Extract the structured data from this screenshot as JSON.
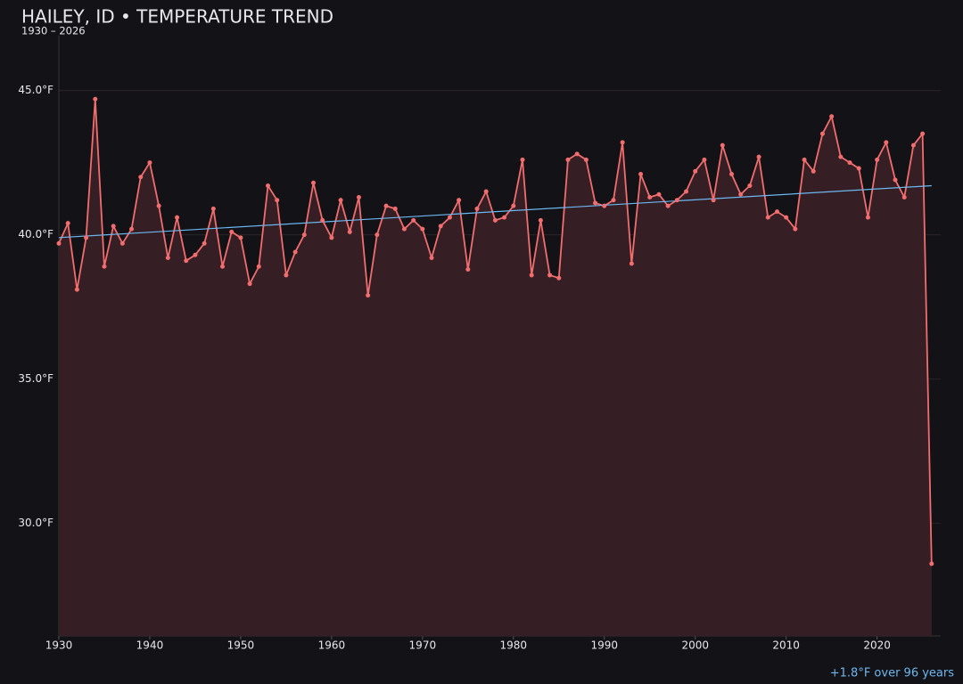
{
  "chart_data": {
    "type": "line",
    "title": "HAILEY, ID • TEMPERATURE TREND",
    "subtitle": "1930 – 2026",
    "annotation": "+1.8°F over 96 years",
    "x": [
      1930,
      1931,
      1932,
      1933,
      1934,
      1935,
      1936,
      1937,
      1938,
      1939,
      1940,
      1941,
      1942,
      1943,
      1944,
      1945,
      1946,
      1947,
      1948,
      1949,
      1950,
      1951,
      1952,
      1953,
      1954,
      1955,
      1956,
      1957,
      1958,
      1959,
      1960,
      1961,
      1962,
      1963,
      1964,
      1965,
      1966,
      1967,
      1968,
      1969,
      1970,
      1971,
      1972,
      1973,
      1974,
      1975,
      1976,
      1977,
      1978,
      1979,
      1980,
      1981,
      1982,
      1983,
      1984,
      1985,
      1986,
      1987,
      1988,
      1989,
      1990,
      1991,
      1992,
      1993,
      1994,
      1995,
      1996,
      1997,
      1998,
      1999,
      2000,
      2001,
      2002,
      2003,
      2004,
      2005,
      2006,
      2007,
      2008,
      2009,
      2010,
      2011,
      2012,
      2013,
      2014,
      2015,
      2016,
      2017,
      2018,
      2019,
      2020,
      2021,
      2022,
      2023,
      2024,
      2025,
      2026
    ],
    "series": [
      {
        "color": "#f26d6d",
        "area_color": "#361e25",
        "values": [
          39.7,
          40.4,
          38.1,
          39.9,
          44.7,
          38.9,
          40.3,
          39.7,
          40.2,
          42.0,
          42.5,
          41.0,
          39.2,
          40.6,
          39.1,
          39.3,
          39.7,
          40.9,
          38.9,
          40.1,
          39.9,
          38.3,
          38.9,
          41.7,
          41.2,
          38.6,
          39.4,
          40.0,
          41.8,
          40.5,
          39.9,
          41.2,
          40.1,
          41.3,
          37.9,
          40.0,
          41.0,
          40.9,
          40.2,
          40.5,
          40.2,
          39.2,
          40.3,
          40.6,
          41.2,
          38.8,
          40.9,
          41.5,
          40.5,
          40.6,
          41.0,
          42.6,
          38.6,
          40.5,
          38.6,
          38.5,
          42.6,
          42.8,
          42.6,
          41.1,
          41.0,
          41.2,
          43.2,
          39.0,
          42.1,
          41.3,
          41.4,
          41.0,
          41.2,
          41.5,
          42.2,
          42.6,
          41.2,
          43.1,
          42.1,
          41.4,
          41.7,
          42.7,
          40.6,
          40.8,
          40.6,
          40.2,
          42.6,
          42.2,
          43.5,
          44.1,
          42.7,
          42.5,
          42.3,
          40.6,
          42.6,
          43.2,
          41.9,
          41.3,
          43.1,
          43.5,
          28.6
        ]
      }
    ],
    "trend": {
      "color": "#6cb8f0",
      "x": [
        1930,
        2026
      ],
      "values": [
        39.9,
        41.7
      ]
    },
    "xlim": [
      1930,
      2027
    ],
    "ylim": [
      26.1,
      46.9
    ],
    "xticks": [
      1930,
      1940,
      1950,
      1960,
      1970,
      1980,
      1990,
      2000,
      2010,
      2020
    ],
    "yticks": [
      {
        "value": 30,
        "label": "30.0°F"
      },
      {
        "value": 35,
        "label": "35.0°F"
      },
      {
        "value": 40,
        "label": "40.0°F"
      },
      {
        "value": 45,
        "label": "45.0°F"
      }
    ],
    "grid": true
  }
}
